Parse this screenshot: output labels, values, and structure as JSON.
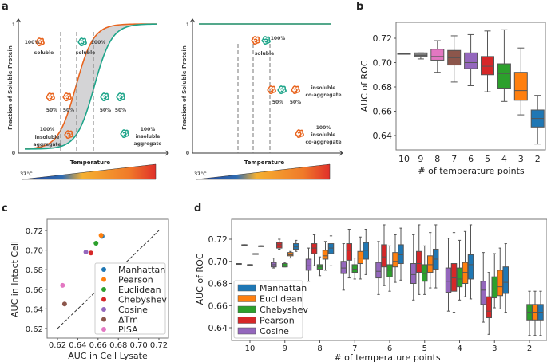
{
  "panels": {
    "a": "a",
    "b": "b",
    "c": "c",
    "d": "d"
  },
  "diagram_a": {
    "ylabel": "Fraction of Soluble Protein",
    "xlabel": "Temperature",
    "y_top": "1",
    "y_bottom": "0",
    "temp_start": "37℃",
    "left": {
      "l1a": "100%",
      "l1b": "soluble",
      "l2a": "100%",
      "l2b": "soluble",
      "p50": "50%",
      "i1": "100%",
      "i2": "insoluble",
      "i3": "aggregate"
    },
    "right": {
      "soluble_pct": "100%",
      "soluble": "soluble",
      "p50": "50%",
      "co1": "insoluble",
      "co2": "co-aggregate",
      "i1": "100%",
      "i2": "insoluble",
      "i3": "co-aggregate"
    },
    "colors": {
      "lysate": "#e8641e",
      "intact": "#1fa58a",
      "shade": "#d4d4d6"
    }
  },
  "chart_data": [
    {
      "panel": "b",
      "type": "box",
      "xlabel": "# of temperature points",
      "ylabel": "AUC of ROC",
      "categories": [
        "10",
        "9",
        "8",
        "7",
        "6",
        "5",
        "4",
        "3",
        "2"
      ],
      "colors": [
        "#bcbd22",
        "#7f7f7f",
        "#e377c2",
        "#8c564b",
        "#9467bd",
        "#d62728",
        "#2ca02c",
        "#ff7f0e",
        "#1f77b4"
      ],
      "boxes": [
        [
          0.7075,
          0.7075,
          0.7075,
          0.7075,
          0.7075
        ],
        [
          0.703,
          0.705,
          0.706,
          0.708,
          0.708
        ],
        [
          0.692,
          0.702,
          0.705,
          0.711,
          0.718
        ],
        [
          0.684,
          0.698,
          0.704,
          0.71,
          0.722
        ],
        [
          0.681,
          0.695,
          0.7,
          0.708,
          0.723
        ],
        [
          0.676,
          0.69,
          0.697,
          0.705,
          0.726
        ],
        [
          0.668,
          0.679,
          0.691,
          0.699,
          0.727
        ],
        [
          0.657,
          0.669,
          0.677,
          0.692,
          0.712
        ],
        [
          0.633,
          0.647,
          0.654,
          0.661,
          0.673
        ]
      ],
      "yticks": [
        "0.64",
        "0.66",
        "0.68",
        "0.70",
        "0.72"
      ],
      "ylim": [
        0.628,
        0.733
      ]
    },
    {
      "panel": "c",
      "type": "scatter",
      "xlabel": "AUC in Cell Lysate",
      "ylabel": "AUC in Intact Cell",
      "xticks": [
        "0.62",
        "0.64",
        "0.66",
        "0.68",
        "0.70",
        "0.72"
      ],
      "yticks": [
        "0.62",
        "0.64",
        "0.66",
        "0.68",
        "0.70",
        "0.72"
      ],
      "xlim": [
        0.61,
        0.73
      ],
      "ylim": [
        0.61,
        0.73
      ],
      "diagonal": [
        0.62,
        0.72
      ],
      "legend": "bottom-right",
      "points": [
        {
          "name": "Manhattan",
          "x": 0.664,
          "y": 0.714,
          "color": "#1f77b4"
        },
        {
          "name": "Pearson",
          "x": 0.663,
          "y": 0.715,
          "color": "#ff7f0e"
        },
        {
          "name": "Euclidean",
          "x": 0.658,
          "y": 0.707,
          "color": "#2ca02c"
        },
        {
          "name": "Chebyshev",
          "x": 0.653,
          "y": 0.697,
          "color": "#d62728"
        },
        {
          "name": "Cosine",
          "x": 0.648,
          "y": 0.698,
          "color": "#9467bd"
        },
        {
          "name": "ΔTm",
          "x": 0.627,
          "y": 0.645,
          "color": "#8c564b"
        },
        {
          "name": "PISA",
          "x": 0.625,
          "y": 0.664,
          "color": "#e377c2"
        }
      ]
    },
    {
      "panel": "d",
      "type": "box",
      "xlabel": "# of temperature points",
      "ylabel": "AUC of ROC",
      "legend": "bottom-left",
      "categories": [
        "10",
        "9",
        "8",
        "7",
        "6",
        "5",
        "4",
        "3",
        "2"
      ],
      "yticks": [
        "0.64",
        "0.66",
        "0.68",
        "0.70",
        "0.72"
      ],
      "ylim": [
        0.628,
        0.735
      ],
      "series": [
        {
          "name": "Cosine",
          "color": "#9467bd",
          "boxes": [
            [
              0.698,
              0.698,
              0.698,
              0.698,
              0.698
            ],
            [
              0.694,
              0.695,
              0.697,
              0.699,
              0.703
            ],
            [
              0.682,
              0.692,
              0.696,
              0.702,
              0.712
            ],
            [
              0.674,
              0.689,
              0.694,
              0.7,
              0.716
            ],
            [
              0.67,
              0.685,
              0.691,
              0.699,
              0.718
            ],
            [
              0.665,
              0.68,
              0.688,
              0.698,
              0.724
            ],
            [
              0.655,
              0.672,
              0.682,
              0.694,
              0.721
            ],
            [
              0.645,
              0.661,
              0.674,
              0.682,
              0.708
            ],
            null
          ]
        },
        {
          "name": "Pearson",
          "color": "#d62728",
          "boxes": [
            [
              0.715,
              0.715,
              0.715,
              0.715,
              0.715
            ],
            [
              0.711,
              0.712,
              0.715,
              0.717,
              0.72
            ],
            [
              0.696,
              0.707,
              0.712,
              0.716,
              0.724
            ],
            [
              0.685,
              0.701,
              0.71,
              0.716,
              0.729
            ],
            [
              0.678,
              0.695,
              0.704,
              0.715,
              0.733
            ],
            [
              0.67,
              0.69,
              0.698,
              0.709,
              0.733
            ],
            [
              0.654,
              0.673,
              0.685,
              0.698,
              0.726
            ],
            [
              0.634,
              0.649,
              0.655,
              0.668,
              0.69
            ],
            null
          ]
        },
        {
          "name": "Chebyshev",
          "color": "#2ca02c",
          "boxes": [
            [
              0.697,
              0.697,
              0.697,
              0.697,
              0.697
            ],
            [
              0.695,
              0.695,
              0.696,
              0.698,
              0.699
            ],
            [
              0.687,
              0.693,
              0.695,
              0.697,
              0.704
            ],
            [
              0.684,
              0.69,
              0.693,
              0.697,
              0.703
            ],
            [
              0.673,
              0.686,
              0.692,
              0.697,
              0.714
            ],
            [
              0.67,
              0.682,
              0.689,
              0.697,
              0.714
            ],
            [
              0.665,
              0.677,
              0.684,
              0.694,
              0.719
            ],
            [
              0.658,
              0.667,
              0.675,
              0.686,
              0.707
            ],
            [
              0.633,
              0.647,
              0.654,
              0.661,
              0.673
            ]
          ]
        },
        {
          "name": "Euclidean",
          "color": "#ff7f0e",
          "boxes": [
            [
              0.707,
              0.707,
              0.707,
              0.707,
              0.707
            ],
            [
              0.703,
              0.705,
              0.706,
              0.708,
              0.709
            ],
            [
              0.692,
              0.702,
              0.705,
              0.71,
              0.718
            ],
            [
              0.684,
              0.698,
              0.703,
              0.709,
              0.722
            ],
            [
              0.681,
              0.695,
              0.7,
              0.708,
              0.724
            ],
            [
              0.676,
              0.69,
              0.697,
              0.705,
              0.726
            ],
            [
              0.668,
              0.68,
              0.69,
              0.699,
              0.727
            ],
            [
              0.657,
              0.669,
              0.677,
              0.692,
              0.712
            ],
            [
              0.633,
              0.647,
              0.654,
              0.661,
              0.673
            ]
          ]
        },
        {
          "name": "Manhattan",
          "color": "#1f77b4",
          "boxes": [
            [
              0.714,
              0.714,
              0.714,
              0.714,
              0.714
            ],
            [
              0.709,
              0.711,
              0.713,
              0.716,
              0.719
            ],
            [
              0.696,
              0.707,
              0.712,
              0.716,
              0.723
            ],
            [
              0.688,
              0.702,
              0.71,
              0.717,
              0.729
            ],
            [
              0.683,
              0.698,
              0.706,
              0.715,
              0.73
            ],
            [
              0.676,
              0.693,
              0.702,
              0.711,
              0.733
            ],
            [
              0.666,
              0.684,
              0.697,
              0.706,
              0.733
            ],
            [
              0.654,
              0.671,
              0.681,
              0.695,
              0.716
            ],
            [
              0.633,
              0.647,
              0.654,
              0.661,
              0.673
            ]
          ]
        }
      ],
      "legend_order": [
        "Manhattan",
        "Euclidean",
        "Chebyshev",
        "Pearson",
        "Cosine"
      ]
    }
  ]
}
